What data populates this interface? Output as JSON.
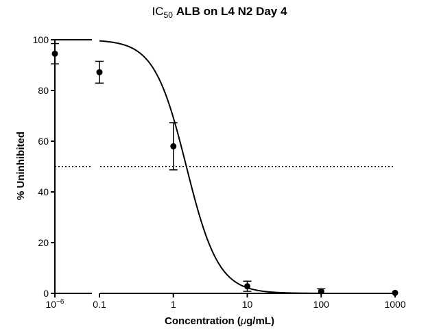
{
  "chart_data": {
    "type": "scatter",
    "title": {
      "symbol": "IC",
      "subscript": "50",
      "text": "ALB on L4 N2 Day 4"
    },
    "xlabel": {
      "before": "Concentration (",
      "mu": "μ",
      "after": "g/mL)"
    },
    "ylabel": "% Uninhibited",
    "x_scale": "log, broken axis",
    "x_ticks": [
      {
        "value": 1e-06,
        "base": "10",
        "exp": "−6"
      },
      {
        "value": 0.1,
        "label": "0.1"
      },
      {
        "value": 1,
        "label": "1"
      },
      {
        "value": 10,
        "label": "10"
      },
      {
        "value": 100,
        "label": "100"
      },
      {
        "value": 1000,
        "label": "1000"
      }
    ],
    "y_ticks": [
      0,
      20,
      40,
      60,
      80,
      100
    ],
    "ylim": [
      0,
      100
    ],
    "points": [
      {
        "x": 1e-06,
        "y": 94.5,
        "err": 4.0
      },
      {
        "x": 0.1,
        "y": 87.2,
        "err": 4.3
      },
      {
        "x": 1,
        "y": 58.0,
        "err": 9.3
      },
      {
        "x": 10,
        "y": 2.8,
        "err": 2.0
      },
      {
        "x": 100,
        "y": 0.8,
        "err": 1.0
      },
      {
        "x": 1000,
        "y": 0.2,
        "err": 0
      }
    ],
    "fit_curve": {
      "top": 100,
      "bottom": 0,
      "ic50": 1.5,
      "hill_slope": 2.0
    },
    "reference_line": {
      "y": 50,
      "style": "dotted"
    },
    "grid": false,
    "legend": "none",
    "colors": {
      "ink": "#000000",
      "background": "#ffffff"
    }
  }
}
